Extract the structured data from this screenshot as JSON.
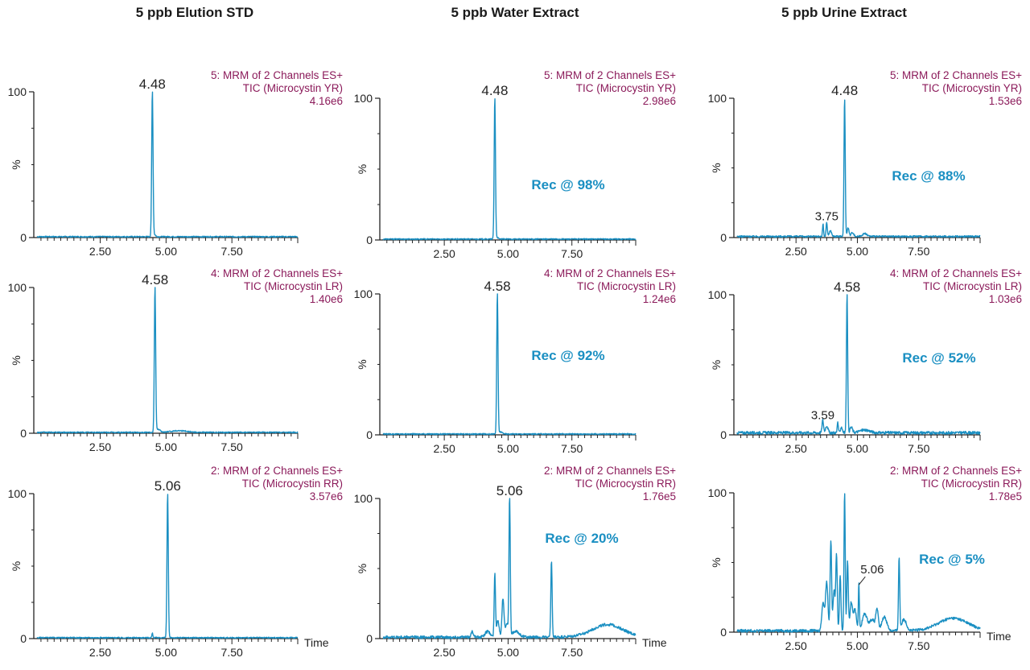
{
  "column_titles": [
    "5 ppb Elution STD",
    "5 ppb Water Extract",
    "5 ppb Urine Extract"
  ],
  "colors": {
    "trace": "#1a8fc2",
    "header": "#8b1a5a",
    "recovery": "#1a8fc2",
    "axis": "#222222"
  },
  "chart_data": [
    {
      "type": "line",
      "column": "5 ppb Elution STD",
      "header": [
        "5: MRM of 2 Channels ES+",
        "TIC (Microcystin YR)",
        "4.16e6"
      ],
      "ylabel": "%",
      "xlabel": "",
      "xticks": [
        "2.50",
        "5.00",
        "7.50"
      ],
      "yticks": [
        "0",
        "100"
      ],
      "xlim": [
        0.1,
        10.0
      ],
      "ylim": [
        0,
        100
      ],
      "peak_label": "4.48",
      "peak_label_x": 4.48,
      "peak_label_y": 100,
      "recovery": "",
      "baseline": 0.6,
      "noise": 0.4,
      "peaks": [
        {
          "x": 4.48,
          "y": 100,
          "w": 0.025
        },
        {
          "x": 4.55,
          "y": 1.5,
          "w": 0.05
        }
      ]
    },
    {
      "type": "line",
      "column": "5 ppb Water Extract",
      "header": [
        "5: MRM of 2 Channels ES+",
        "TIC (Microcystin YR)",
        "2.98e6"
      ],
      "ylabel": "%",
      "xlabel": "",
      "xticks": [
        "2.50",
        "5.00",
        "7.50"
      ],
      "yticks": [
        "0",
        "100"
      ],
      "xlim": [
        0.1,
        10.0
      ],
      "ylim": [
        0,
        100
      ],
      "peak_label": "4.48",
      "peak_label_x": 4.48,
      "peak_label_y": 100,
      "recovery": "Rec @ 98%",
      "baseline": 0.6,
      "noise": 0.4,
      "peaks": [
        {
          "x": 4.48,
          "y": 100,
          "w": 0.025
        },
        {
          "x": 4.55,
          "y": 1.5,
          "w": 0.05
        }
      ]
    },
    {
      "type": "line",
      "column": "5 ppb Urine Extract",
      "header": [
        "5: MRM of 2 Channels ES+",
        "TIC (Microcystin YR)",
        "1.53e6"
      ],
      "ylabel": "%",
      "xlabel": "",
      "xticks": [
        "2.50",
        "5.00",
        "7.50"
      ],
      "yticks": [
        "0",
        "100"
      ],
      "xlim": [
        0.1,
        10.0
      ],
      "ylim": [
        0,
        100
      ],
      "peak_label": "4.48",
      "peak_label_x": 4.48,
      "peak_label_y": 100,
      "recovery": "Rec @ 88%",
      "baseline": 0.8,
      "noise": 0.6,
      "peaks": [
        {
          "x": 3.6,
          "y": 9,
          "w": 0.02
        },
        {
          "x": 3.75,
          "y": 10,
          "w": 0.025
        },
        {
          "x": 3.9,
          "y": 4,
          "w": 0.05
        },
        {
          "x": 4.48,
          "y": 100,
          "w": 0.025
        },
        {
          "x": 4.62,
          "y": 6,
          "w": 0.04
        },
        {
          "x": 4.8,
          "y": 3,
          "w": 0.05
        },
        {
          "x": 5.3,
          "y": 2,
          "w": 0.1
        }
      ],
      "annotations": [
        {
          "text": "3.75",
          "x": 3.75,
          "y": 10
        }
      ]
    },
    {
      "type": "line",
      "column": "5 ppb Elution STD",
      "header": [
        "4: MRM of 2 Channels ES+",
        "TIC (Microcystin LR)",
        "1.40e6"
      ],
      "ylabel": "%",
      "xlabel": "",
      "xticks": [
        "2.50",
        "5.00",
        "7.50"
      ],
      "yticks": [
        "0",
        "100"
      ],
      "xlim": [
        0.1,
        10.0
      ],
      "ylim": [
        0,
        100
      ],
      "peak_label": "4.58",
      "peak_label_x": 4.58,
      "peak_label_y": 100,
      "recovery": "",
      "baseline": 0.6,
      "noise": 0.4,
      "peaks": [
        {
          "x": 4.58,
          "y": 100,
          "w": 0.025
        },
        {
          "x": 4.7,
          "y": 2,
          "w": 0.08
        },
        {
          "x": 5.5,
          "y": 1.2,
          "w": 0.3
        }
      ]
    },
    {
      "type": "line",
      "column": "5 ppb Water Extract",
      "header": [
        "4: MRM of 2 Channels ES+",
        "TIC (Microcystin LR)",
        "1.24e6"
      ],
      "ylabel": "%",
      "xlabel": "",
      "xticks": [
        "2.50",
        "5.00",
        "7.50"
      ],
      "yticks": [
        "0",
        "100"
      ],
      "xlim": [
        0.1,
        10.0
      ],
      "ylim": [
        0,
        100
      ],
      "peak_label": "4.58",
      "peak_label_x": 4.58,
      "peak_label_y": 100,
      "recovery": "Rec @ 92%",
      "baseline": 0.6,
      "noise": 0.4,
      "peaks": [
        {
          "x": 4.58,
          "y": 100,
          "w": 0.025
        },
        {
          "x": 4.7,
          "y": 1.5,
          "w": 0.08
        }
      ]
    },
    {
      "type": "line",
      "column": "5 ppb Urine Extract",
      "header": [
        "4: MRM of 2 Channels ES+",
        "TIC (Microcystin LR)",
        "1.03e6"
      ],
      "ylabel": "%",
      "xlabel": "",
      "xticks": [
        "2.50",
        "5.00",
        "7.50"
      ],
      "yticks": [
        "0",
        "100"
      ],
      "xlim": [
        0.1,
        10.0
      ],
      "ylim": [
        0,
        100
      ],
      "peak_label": "4.58",
      "peak_label_x": 4.58,
      "peak_label_y": 100,
      "recovery": "Rec @ 52%",
      "baseline": 1.5,
      "noise": 1.0,
      "peaks": [
        {
          "x": 3.59,
          "y": 9,
          "w": 0.03
        },
        {
          "x": 3.75,
          "y": 5,
          "w": 0.05
        },
        {
          "x": 4.2,
          "y": 8,
          "w": 0.02
        },
        {
          "x": 4.35,
          "y": 4,
          "w": 0.04
        },
        {
          "x": 4.58,
          "y": 100,
          "w": 0.025
        },
        {
          "x": 4.75,
          "y": 4,
          "w": 0.05
        },
        {
          "x": 5.3,
          "y": 2,
          "w": 0.2
        }
      ],
      "annotations": [
        {
          "text": "3.59",
          "x": 3.59,
          "y": 9
        }
      ]
    },
    {
      "type": "line",
      "column": "5 ppb Elution STD",
      "header": [
        "2: MRM of 2 Channels ES+",
        "TIC (Microcystin RR)",
        "3.57e6"
      ],
      "ylabel": "%",
      "xlabel": "Time",
      "xticks": [
        "2.50",
        "5.00",
        "7.50"
      ],
      "yticks": [
        "0",
        "100"
      ],
      "xlim": [
        0.1,
        10.0
      ],
      "ylim": [
        0,
        100
      ],
      "peak_label": "5.06",
      "peak_label_x": 5.06,
      "peak_label_y": 100,
      "recovery": "",
      "baseline": 0.6,
      "noise": 0.4,
      "peaks": [
        {
          "x": 4.48,
          "y": 3,
          "w": 0.02
        },
        {
          "x": 5.06,
          "y": 100,
          "w": 0.025
        }
      ]
    },
    {
      "type": "line",
      "column": "5 ppb Water Extract",
      "header": [
        "2: MRM of 2 Channels ES+",
        "TIC (Microcystin RR)",
        "1.76e5"
      ],
      "ylabel": "%",
      "xlabel": "Time",
      "xticks": [
        "2.50",
        "5.00",
        "7.50"
      ],
      "yticks": [
        "0",
        "100"
      ],
      "xlim": [
        0.1,
        10.0
      ],
      "ylim": [
        0,
        100
      ],
      "peak_label": "5.06",
      "peak_label_x": 5.06,
      "peak_label_y": 100,
      "recovery": "Rec @ 20%",
      "baseline": 1.0,
      "noise": 1.0,
      "peaks": [
        {
          "x": 3.6,
          "y": 4,
          "w": 0.05
        },
        {
          "x": 4.2,
          "y": 4,
          "w": 0.1
        },
        {
          "x": 4.48,
          "y": 45,
          "w": 0.025
        },
        {
          "x": 4.6,
          "y": 12,
          "w": 0.05
        },
        {
          "x": 4.8,
          "y": 28,
          "w": 0.04
        },
        {
          "x": 4.95,
          "y": 10,
          "w": 0.05
        },
        {
          "x": 5.06,
          "y": 100,
          "w": 0.025
        },
        {
          "x": 5.3,
          "y": 4,
          "w": 0.15
        },
        {
          "x": 6.7,
          "y": 55,
          "w": 0.025
        },
        {
          "x": 8.9,
          "y": 9,
          "w": 0.6
        }
      ],
      "annotations": []
    },
    {
      "type": "line",
      "column": "5 ppb Urine Extract",
      "header": [
        "2: MRM of 2 Channels ES+",
        "TIC (Microcystin RR)",
        "1.78e5"
      ],
      "ylabel": "%",
      "xlabel": "Time",
      "xticks": [
        "2.50",
        "5.00",
        "7.50"
      ],
      "yticks": [
        "0",
        "100"
      ],
      "xlim": [
        0.1,
        10.0
      ],
      "ylim": [
        0,
        100
      ],
      "peak_label": "",
      "peak_label_x": 5.06,
      "peak_label_y": 35,
      "recovery": "Rec @ 5%",
      "baseline": 1.0,
      "noise": 1.0,
      "peaks": [
        {
          "x": 3.6,
          "y": 20,
          "w": 0.05
        },
        {
          "x": 3.75,
          "y": 35,
          "w": 0.05
        },
        {
          "x": 3.92,
          "y": 65,
          "w": 0.03
        },
        {
          "x": 4.05,
          "y": 30,
          "w": 0.04
        },
        {
          "x": 4.15,
          "y": 55,
          "w": 0.03
        },
        {
          "x": 4.3,
          "y": 40,
          "w": 0.03
        },
        {
          "x": 4.48,
          "y": 100,
          "w": 0.025
        },
        {
          "x": 4.6,
          "y": 50,
          "w": 0.03
        },
        {
          "x": 4.75,
          "y": 20,
          "w": 0.05
        },
        {
          "x": 4.9,
          "y": 15,
          "w": 0.06
        },
        {
          "x": 5.06,
          "y": 34,
          "w": 0.02
        },
        {
          "x": 5.3,
          "y": 12,
          "w": 0.1
        },
        {
          "x": 5.6,
          "y": 8,
          "w": 0.1
        },
        {
          "x": 5.8,
          "y": 15,
          "w": 0.05
        },
        {
          "x": 6.1,
          "y": 10,
          "w": 0.1
        },
        {
          "x": 6.7,
          "y": 52,
          "w": 0.025
        },
        {
          "x": 6.9,
          "y": 8,
          "w": 0.1
        },
        {
          "x": 8.9,
          "y": 9,
          "w": 0.6
        }
      ],
      "annotations": [
        {
          "text": "5.06",
          "x": 5.06,
          "y": 34
        }
      ]
    }
  ]
}
